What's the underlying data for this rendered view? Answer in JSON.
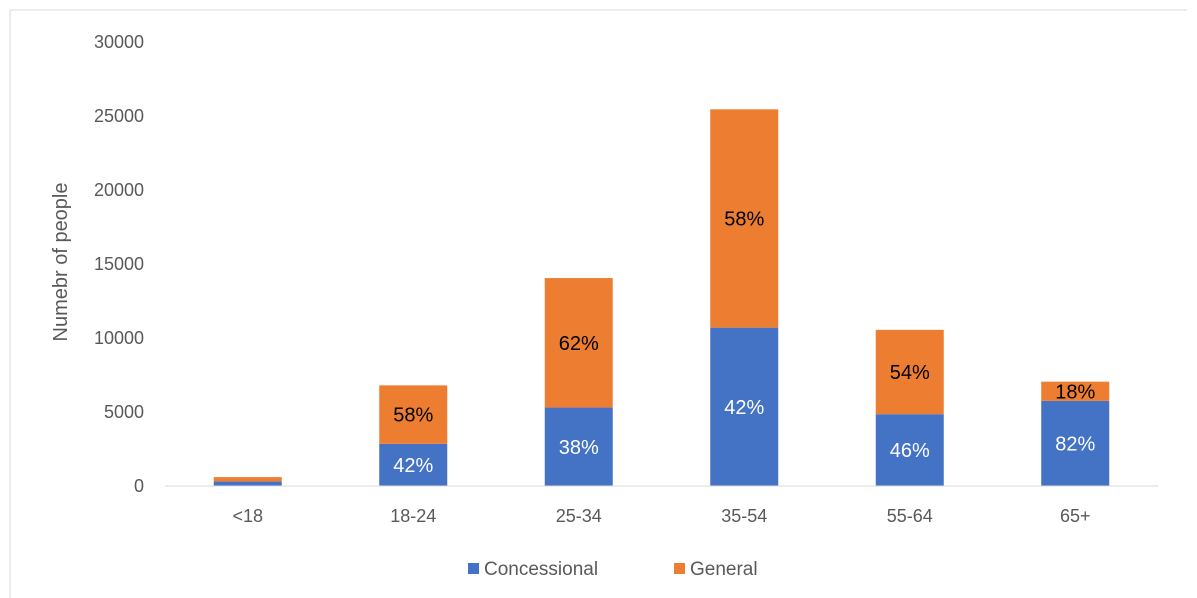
{
  "colors": {
    "concessional": "#4472C4",
    "general": "#ED7D31",
    "label_on_blue": "#FFFFFF",
    "label_on_orange": "#000000",
    "axis_line": "#D9D9D9",
    "frame": "#D9D9D9"
  },
  "chart_data": {
    "type": "bar",
    "stacked": true,
    "title": "",
    "xlabel": "",
    "ylabel": "Numebr of people",
    "ylim": [
      0,
      30000
    ],
    "yticks": [
      "0",
      "5000",
      "10000",
      "15000",
      "20000",
      "25000",
      "30000"
    ],
    "ytick_values": [
      0,
      5000,
      10000,
      15000,
      20000,
      25000,
      30000
    ],
    "grid": false,
    "legend_position": "bottom",
    "categories": [
      "<18",
      "18-24",
      "25-34",
      "35-54",
      "55-64",
      "65+"
    ],
    "series": [
      {
        "name": "Concessional",
        "values": [
          300,
          2850,
          5300,
          10700,
          4850,
          5750
        ],
        "labels": [
          "",
          "42%",
          "38%",
          "42%",
          "46%",
          "82%"
        ]
      },
      {
        "name": "General",
        "values": [
          300,
          3950,
          8750,
          14750,
          5700,
          1300
        ],
        "labels": [
          "",
          "58%",
          "62%",
          "58%",
          "54%",
          "18%"
        ]
      }
    ]
  }
}
